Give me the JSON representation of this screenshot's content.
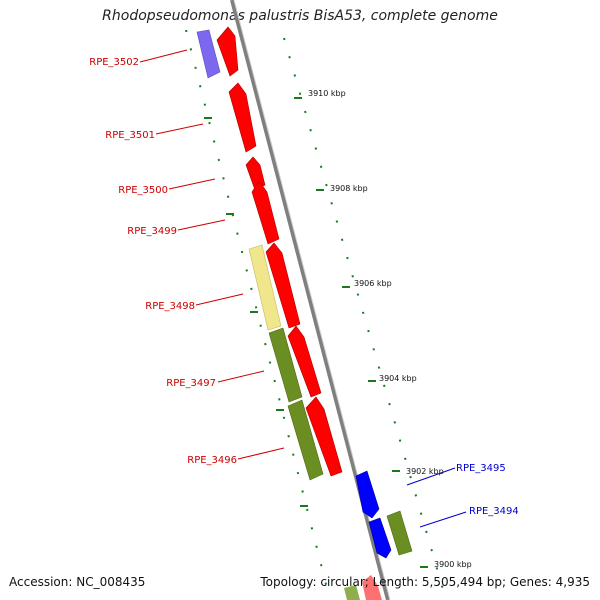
{
  "title": "Rhodopseudomonas palustris BisA53, complete genome",
  "footer": {
    "accession": "Accession: NC_008435",
    "summary": "Topology: circular; Length: 5,505,494 bp; Genes: 4,935"
  },
  "scale_labels": [
    "3910 kbp",
    "3908 kbp",
    "3906 kbp",
    "3904 kbp",
    "3902 kbp",
    "3900 kbp"
  ],
  "genes_left": [
    "RPE_3502",
    "RPE_3501",
    "RPE_3500",
    "RPE_3499",
    "RPE_3498",
    "RPE_3497",
    "RPE_3496"
  ],
  "genes_right": [
    "RPE_3495",
    "RPE_3494"
  ],
  "colors": {
    "forward_gene": "#ff0000",
    "reverse_gene": "#0000ff",
    "label_red": "#cc0000",
    "label_blue": "#0000cc",
    "backbone": "#8c8c8c",
    "tick": "#1a7a1a",
    "cog_olive": "#6b8e23",
    "cog_yellow": "#f0e68c",
    "cog_purple": "#7b68ee"
  }
}
